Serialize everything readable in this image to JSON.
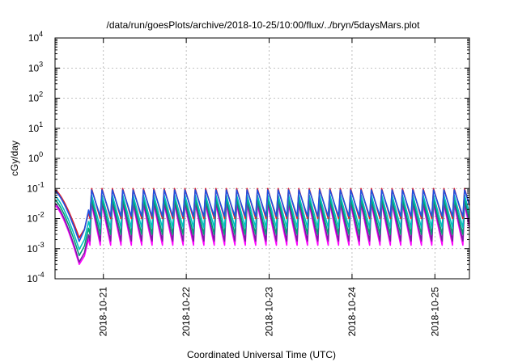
{
  "chart_data": {
    "type": "line",
    "title": "/data/run/goesPlots/archive/2018-10-25/10:00/flux/../bryn/5daysMars.plot",
    "xlabel": "Coordinated Universal Time (UTC)",
    "ylabel": "cGy/day",
    "yscale": "log",
    "ylim": [
      0.0001,
      10000
    ],
    "xlim": [
      "2018-10-20 10:00",
      "2018-10-25 10:00"
    ],
    "grid": true,
    "legend": "none",
    "y_ticks": [
      {
        "base": "10",
        "exp": "-4"
      },
      {
        "base": "10",
        "exp": "-3"
      },
      {
        "base": "10",
        "exp": "-2"
      },
      {
        "base": "10",
        "exp": "-1"
      },
      {
        "base": "10",
        "exp": "0"
      },
      {
        "base": "10",
        "exp": "1"
      },
      {
        "base": "10",
        "exp": "2"
      },
      {
        "base": "10",
        "exp": "3"
      },
      {
        "base": "10",
        "exp": "4"
      }
    ],
    "x_ticks": [
      {
        "label": "2018-10-21",
        "at": "2018-10-21 00:00"
      },
      {
        "label": "2018-10-22",
        "at": "2018-10-22 00:00"
      },
      {
        "label": "2018-10-23",
        "at": "2018-10-23 00:00"
      },
      {
        "label": "2018-10-24",
        "at": "2018-10-24 00:00"
      },
      {
        "label": "2018-10-25",
        "at": "2018-10-25 00:00"
      }
    ],
    "sawtooth_period_hours": 3,
    "series": [
      {
        "color": "#ff00ff",
        "peak": 0.03,
        "trough": 0.0013,
        "dip_min": 0.00025
      },
      {
        "color": "#7a1fa2",
        "peak": 0.035,
        "trough": 0.0018,
        "dip_min": 0.0003
      },
      {
        "color": "#009e73",
        "peak": 0.045,
        "trough": 0.003,
        "dip_min": 0.0005
      },
      {
        "color": "#00c0c0",
        "peak": 0.06,
        "trough": 0.005,
        "dip_min": 0.0008
      },
      {
        "color": "#e0202a",
        "peak": 0.1,
        "trough": 0.01,
        "dip_min": 0.002
      },
      {
        "color": "#2050e0",
        "peak": 0.09,
        "trough": 0.012,
        "dip_min": 0.0015
      }
    ]
  }
}
